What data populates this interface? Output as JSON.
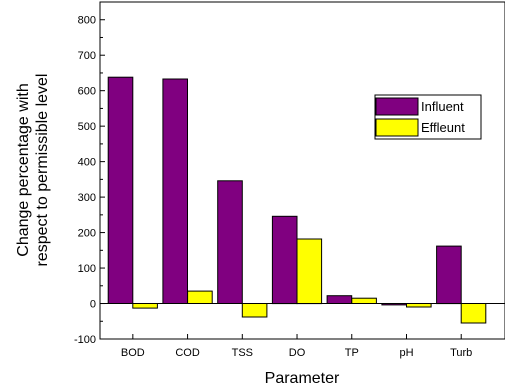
{
  "chart_data": {
    "type": "bar",
    "xlabel": "Parameter",
    "ylabel": "Change percentage with respect to permissible level",
    "ylabel_lines": [
      "Change percentage with",
      "respect to permissible level"
    ],
    "categories": [
      "BOD",
      "COD",
      "TSS",
      "DO",
      "TP",
      "pH",
      "Turb"
    ],
    "series": [
      {
        "name": "Influent",
        "color": "#800080",
        "values": [
          638,
          633,
          346,
          246,
          22,
          -4,
          162
        ]
      },
      {
        "name": "Effleunt",
        "color": "#ffff00",
        "values": [
          -13,
          35,
          -38,
          182,
          15,
          -10,
          -55
        ]
      }
    ],
    "ylim": [
      -100,
      850
    ],
    "yticks": [
      -100,
      0,
      100,
      200,
      300,
      400,
      500,
      600,
      700,
      800
    ],
    "grid": false,
    "legend_position": "top-right"
  }
}
